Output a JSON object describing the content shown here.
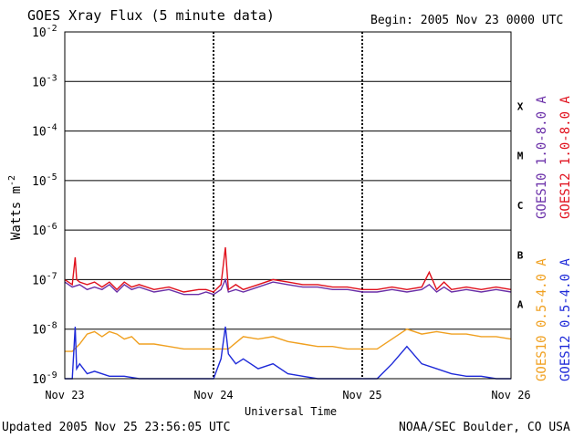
{
  "chart_data": {
    "type": "line",
    "title": "GOES Xray Flux (5 minute data)",
    "begin_label": "Begin:  2005 Nov 23 0000 UTC",
    "xlabel": "Universal Time",
    "ylabel": "Watts m",
    "ylabel_superscript": "-2",
    "log_scale": true,
    "ylim": [
      1e-09,
      0.01
    ],
    "xlim_days": [
      0,
      3
    ],
    "grid": true,
    "x_ticks": [
      {
        "day": 0,
        "label": "Nov 23"
      },
      {
        "day": 1,
        "label": "Nov 24"
      },
      {
        "day": 2,
        "label": "Nov 25"
      },
      {
        "day": 3,
        "label": "Nov 26"
      }
    ],
    "y_ticks": [
      {
        "exp": -9,
        "base": "10",
        "sup": "-9"
      },
      {
        "exp": -8,
        "base": "10",
        "sup": "-8"
      },
      {
        "exp": -7,
        "base": "10",
        "sup": "-7"
      },
      {
        "exp": -6,
        "base": "10",
        "sup": "-6"
      },
      {
        "exp": -5,
        "base": "10",
        "sup": "-5"
      },
      {
        "exp": -4,
        "base": "10",
        "sup": "-4"
      },
      {
        "exp": -3,
        "base": "10",
        "sup": "-3"
      },
      {
        "exp": -2,
        "base": "10",
        "sup": "-2"
      }
    ],
    "flare_classes": [
      {
        "label": "A",
        "exp": -7.5
      },
      {
        "label": "B",
        "exp": -6.5
      },
      {
        "label": "C",
        "exp": -5.5
      },
      {
        "label": "M",
        "exp": -4.5
      },
      {
        "label": "X",
        "exp": -3.5
      }
    ],
    "legend": [
      {
        "text": "GOES10 1.0-8.0 A",
        "color": "#6a2fa8",
        "series": "goes10_long"
      },
      {
        "text": "GOES12 1.0-8.0 A",
        "color": "#e0101c",
        "series": "goes12_long"
      },
      {
        "text": "GOES10 0.5-4.0 A",
        "color": "#f0a020",
        "series": "goes10_short"
      },
      {
        "text": "GOES12 0.5-4.0 A",
        "color": "#1e2ad8",
        "series": "goes12_short"
      }
    ],
    "series": [
      {
        "name": "GOES10 1.0-8.0 A",
        "key": "goes10_long",
        "color": "#6a2fa8",
        "points": [
          [
            0.0,
            -7.05
          ],
          [
            0.05,
            -7.15
          ],
          [
            0.1,
            -7.1
          ],
          [
            0.15,
            -7.2
          ],
          [
            0.2,
            -7.15
          ],
          [
            0.25,
            -7.2
          ],
          [
            0.3,
            -7.1
          ],
          [
            0.35,
            -7.25
          ],
          [
            0.4,
            -7.1
          ],
          [
            0.45,
            -7.2
          ],
          [
            0.5,
            -7.15
          ],
          [
            0.6,
            -7.25
          ],
          [
            0.7,
            -7.2
          ],
          [
            0.8,
            -7.3
          ],
          [
            0.9,
            -7.3
          ],
          [
            0.95,
            -7.25
          ],
          [
            1.0,
            -7.3
          ],
          [
            1.05,
            -7.2
          ],
          [
            1.08,
            -7.0
          ],
          [
            1.1,
            -7.25
          ],
          [
            1.15,
            -7.2
          ],
          [
            1.2,
            -7.25
          ],
          [
            1.3,
            -7.15
          ],
          [
            1.4,
            -7.05
          ],
          [
            1.5,
            -7.1
          ],
          [
            1.6,
            -7.15
          ],
          [
            1.7,
            -7.15
          ],
          [
            1.8,
            -7.2
          ],
          [
            1.9,
            -7.2
          ],
          [
            2.0,
            -7.25
          ],
          [
            2.1,
            -7.25
          ],
          [
            2.2,
            -7.2
          ],
          [
            2.3,
            -7.25
          ],
          [
            2.4,
            -7.2
          ],
          [
            2.45,
            -7.1
          ],
          [
            2.5,
            -7.25
          ],
          [
            2.55,
            -7.15
          ],
          [
            2.6,
            -7.25
          ],
          [
            2.7,
            -7.2
          ],
          [
            2.8,
            -7.25
          ],
          [
            2.9,
            -7.2
          ],
          [
            3.0,
            -7.25
          ]
        ]
      },
      {
        "name": "GOES12 1.0-8.0 A",
        "key": "goes12_long",
        "color": "#e0101c",
        "points": [
          [
            0.0,
            -7.0
          ],
          [
            0.05,
            -7.1
          ],
          [
            0.07,
            -6.55
          ],
          [
            0.08,
            -7.0
          ],
          [
            0.1,
            -7.05
          ],
          [
            0.15,
            -7.1
          ],
          [
            0.2,
            -7.05
          ],
          [
            0.25,
            -7.15
          ],
          [
            0.3,
            -7.05
          ],
          [
            0.35,
            -7.2
          ],
          [
            0.4,
            -7.05
          ],
          [
            0.45,
            -7.15
          ],
          [
            0.5,
            -7.1
          ],
          [
            0.6,
            -7.2
          ],
          [
            0.7,
            -7.15
          ],
          [
            0.8,
            -7.25
          ],
          [
            0.9,
            -7.2
          ],
          [
            0.95,
            -7.2
          ],
          [
            1.0,
            -7.25
          ],
          [
            1.05,
            -7.1
          ],
          [
            1.08,
            -6.35
          ],
          [
            1.09,
            -6.8
          ],
          [
            1.1,
            -7.2
          ],
          [
            1.15,
            -7.1
          ],
          [
            1.2,
            -7.2
          ],
          [
            1.3,
            -7.1
          ],
          [
            1.4,
            -7.0
          ],
          [
            1.5,
            -7.05
          ],
          [
            1.6,
            -7.1
          ],
          [
            1.7,
            -7.1
          ],
          [
            1.8,
            -7.15
          ],
          [
            1.9,
            -7.15
          ],
          [
            2.0,
            -7.2
          ],
          [
            2.1,
            -7.2
          ],
          [
            2.2,
            -7.15
          ],
          [
            2.3,
            -7.2
          ],
          [
            2.4,
            -7.15
          ],
          [
            2.45,
            -6.85
          ],
          [
            2.5,
            -7.2
          ],
          [
            2.55,
            -7.05
          ],
          [
            2.6,
            -7.2
          ],
          [
            2.7,
            -7.15
          ],
          [
            2.8,
            -7.2
          ],
          [
            2.9,
            -7.15
          ],
          [
            3.0,
            -7.2
          ]
        ]
      },
      {
        "name": "GOES10 0.5-4.0 A",
        "key": "goes10_short",
        "color": "#f0a020",
        "points": [
          [
            0.0,
            -8.45
          ],
          [
            0.05,
            -8.45
          ],
          [
            0.1,
            -8.3
          ],
          [
            0.15,
            -8.1
          ],
          [
            0.2,
            -8.05
          ],
          [
            0.25,
            -8.15
          ],
          [
            0.3,
            -8.05
          ],
          [
            0.35,
            -8.1
          ],
          [
            0.4,
            -8.2
          ],
          [
            0.45,
            -8.15
          ],
          [
            0.5,
            -8.3
          ],
          [
            0.6,
            -8.3
          ],
          [
            0.7,
            -8.35
          ],
          [
            0.8,
            -8.4
          ],
          [
            0.9,
            -8.4
          ],
          [
            1.0,
            -8.4
          ],
          [
            1.1,
            -8.4
          ],
          [
            1.2,
            -8.15
          ],
          [
            1.3,
            -8.2
          ],
          [
            1.4,
            -8.15
          ],
          [
            1.5,
            -8.25
          ],
          [
            1.6,
            -8.3
          ],
          [
            1.7,
            -8.35
          ],
          [
            1.8,
            -8.35
          ],
          [
            1.9,
            -8.4
          ],
          [
            2.0,
            -8.4
          ],
          [
            2.1,
            -8.4
          ],
          [
            2.2,
            -8.2
          ],
          [
            2.3,
            -8.0
          ],
          [
            2.4,
            -8.1
          ],
          [
            2.5,
            -8.05
          ],
          [
            2.6,
            -8.1
          ],
          [
            2.7,
            -8.1
          ],
          [
            2.8,
            -8.15
          ],
          [
            2.9,
            -8.15
          ],
          [
            3.0,
            -8.2
          ]
        ]
      },
      {
        "name": "GOES12 0.5-4.0 A",
        "key": "goes12_short",
        "color": "#1e2ad8",
        "points": [
          [
            0.0,
            -9.0
          ],
          [
            0.05,
            -9.0
          ],
          [
            0.07,
            -7.95
          ],
          [
            0.08,
            -8.8
          ],
          [
            0.1,
            -8.7
          ],
          [
            0.15,
            -8.9
          ],
          [
            0.2,
            -8.85
          ],
          [
            0.3,
            -8.95
          ],
          [
            0.4,
            -8.95
          ],
          [
            0.5,
            -9.0
          ],
          [
            0.6,
            -9.0
          ],
          [
            0.7,
            -9.0
          ],
          [
            0.8,
            -9.0
          ],
          [
            0.9,
            -9.0
          ],
          [
            1.0,
            -9.0
          ],
          [
            1.05,
            -8.6
          ],
          [
            1.08,
            -7.95
          ],
          [
            1.1,
            -8.5
          ],
          [
            1.15,
            -8.7
          ],
          [
            1.2,
            -8.6
          ],
          [
            1.3,
            -8.8
          ],
          [
            1.4,
            -8.7
          ],
          [
            1.5,
            -8.9
          ],
          [
            1.6,
            -8.95
          ],
          [
            1.7,
            -9.0
          ],
          [
            1.8,
            -9.0
          ],
          [
            1.9,
            -9.0
          ],
          [
            2.0,
            -9.0
          ],
          [
            2.1,
            -9.0
          ],
          [
            2.2,
            -8.7
          ],
          [
            2.3,
            -8.35
          ],
          [
            2.4,
            -8.7
          ],
          [
            2.5,
            -8.8
          ],
          [
            2.6,
            -8.9
          ],
          [
            2.7,
            -8.95
          ],
          [
            2.8,
            -8.95
          ],
          [
            2.9,
            -9.0
          ],
          [
            3.0,
            -9.0
          ]
        ]
      }
    ]
  },
  "footer": {
    "updated": "Updated 2005 Nov 25 23:56:05 UTC",
    "source": "NOAA/SEC Boulder, CO USA"
  }
}
